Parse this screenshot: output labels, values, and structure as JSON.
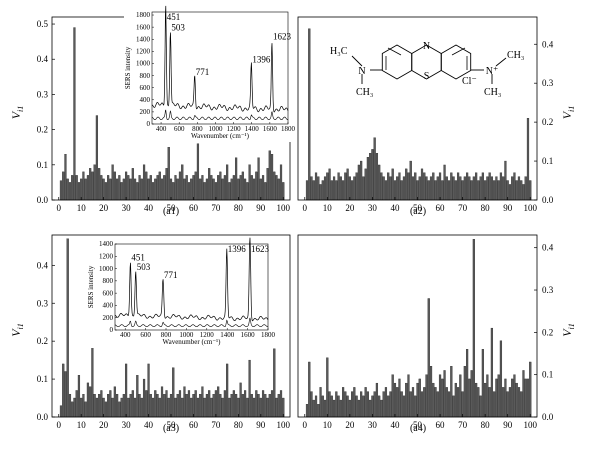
{
  "chart_data": [
    {
      "panel": "a1",
      "type": "bar",
      "label": "(a1)",
      "ylabel_main": "V",
      "ylabel_sub": "i1",
      "ylim": [
        0,
        0.52
      ],
      "xlim": [
        -3,
        103
      ],
      "xticks": [
        "0",
        "10",
        "20",
        "30",
        "40",
        "50",
        "60",
        "70",
        "80",
        "90",
        "100"
      ],
      "yticks": [
        "0.0",
        "0.1",
        "0.2",
        "0.3",
        "0.4",
        "0.5"
      ],
      "y_axis_side": "left",
      "values": [
        0.055,
        0.08,
        0.13,
        0.06,
        0.05,
        0.07,
        0.49,
        0.07,
        0.05,
        0.06,
        0.08,
        0.06,
        0.07,
        0.09,
        0.08,
        0.1,
        0.24,
        0.09,
        0.07,
        0.06,
        0.05,
        0.07,
        0.06,
        0.1,
        0.08,
        0.06,
        0.07,
        0.05,
        0.06,
        0.08,
        0.07,
        0.06,
        0.09,
        0.06,
        0.05,
        0.07,
        0.06,
        0.1,
        0.08,
        0.06,
        0.07,
        0.05,
        0.06,
        0.07,
        0.08,
        0.06,
        0.07,
        0.09,
        0.15,
        0.06,
        0.05,
        0.07,
        0.06,
        0.08,
        0.1,
        0.06,
        0.07,
        0.05,
        0.06,
        0.07,
        0.08,
        0.16,
        0.06,
        0.07,
        0.05,
        0.06,
        0.09,
        0.07,
        0.06,
        0.05,
        0.07,
        0.08,
        0.06,
        0.07,
        0.1,
        0.05,
        0.06,
        0.07,
        0.12,
        0.06,
        0.07,
        0.08,
        0.06,
        0.05,
        0.1,
        0.07,
        0.06,
        0.08,
        0.12,
        0.06,
        0.07,
        0.05,
        0.09,
        0.14,
        0.13,
        0.08,
        0.07,
        0.06,
        0.1,
        0.05
      ],
      "inset": {
        "xlabel": "Wavenumber (cm⁻¹)",
        "ylabel": "SERS intensity",
        "xticks": [
          "400",
          "600",
          "800",
          "1000",
          "1200",
          "1400",
          "1600",
          "1800"
        ],
        "yticks": [
          "0",
          "200",
          "400",
          "600",
          "800",
          "1000",
          "1200",
          "1400",
          "1600",
          "1800"
        ],
        "xlim": [
          300,
          1800
        ],
        "ylim": [
          0,
          1850
        ],
        "peaks": [
          "451",
          "503",
          "771",
          "1396",
          "1623"
        ],
        "peak_positions": [
          451,
          503,
          771,
          1396,
          1623
        ],
        "peak_heights": [
          1700,
          1250,
          520,
          720,
          1100
        ]
      }
    },
    {
      "panel": "a2",
      "type": "bar",
      "label": "(a2)",
      "ylabel_main": "V",
      "ylabel_sub": "i1",
      "ylim": [
        0,
        0.47
      ],
      "xlim": [
        -3,
        103
      ],
      "xticks": [
        "0",
        "10",
        "20",
        "30",
        "40",
        "50",
        "60",
        "70",
        "80",
        "90",
        "100"
      ],
      "yticks": [
        "0.0",
        "0.1",
        "0.2",
        "0.3",
        "0.4"
      ],
      "y_axis_side": "right",
      "values": [
        0.05,
        0.44,
        0.06,
        0.05,
        0.07,
        0.06,
        0.04,
        0.05,
        0.06,
        0.07,
        0.08,
        0.05,
        0.06,
        0.05,
        0.07,
        0.06,
        0.05,
        0.07,
        0.08,
        0.06,
        0.05,
        0.06,
        0.07,
        0.09,
        0.1,
        0.06,
        0.08,
        0.11,
        0.12,
        0.13,
        0.16,
        0.12,
        0.09,
        0.07,
        0.06,
        0.05,
        0.07,
        0.06,
        0.08,
        0.05,
        0.06,
        0.07,
        0.05,
        0.06,
        0.08,
        0.07,
        0.1,
        0.06,
        0.07,
        0.05,
        0.06,
        0.08,
        0.07,
        0.06,
        0.05,
        0.06,
        0.07,
        0.05,
        0.06,
        0.07,
        0.05,
        0.09,
        0.06,
        0.05,
        0.07,
        0.06,
        0.05,
        0.07,
        0.06,
        0.05,
        0.06,
        0.07,
        0.06,
        0.05,
        0.06,
        0.07,
        0.05,
        0.06,
        0.07,
        0.05,
        0.06,
        0.07,
        0.06,
        0.05,
        0.06,
        0.05,
        0.07,
        0.06,
        0.1,
        0.05,
        0.04,
        0.06,
        0.07,
        0.05,
        0.06,
        0.05,
        0.04,
        0.06,
        0.21,
        0.05
      ],
      "structure": {
        "left_group": [
          "H₃C",
          "N",
          "CH₃"
        ],
        "ring_atoms": [
          "N",
          "S"
        ],
        "right_group": [
          "N⁺",
          "CH₃",
          "CH₃"
        ],
        "counter_ion": "Cl⁻"
      }
    },
    {
      "panel": "a3",
      "type": "bar",
      "label": "(a3)",
      "ylabel_main": "V",
      "ylabel_sub": "i1",
      "ylim": [
        0,
        0.48
      ],
      "xlim": [
        -3,
        103
      ],
      "xticks": [
        "0",
        "10",
        "20",
        "30",
        "40",
        "50",
        "60",
        "70",
        "80",
        "90",
        "100"
      ],
      "yticks": [
        "0.0",
        "0.1",
        "0.2",
        "0.3",
        "0.4"
      ],
      "y_axis_side": "left",
      "values": [
        0.03,
        0.14,
        0.12,
        0.47,
        0.06,
        0.04,
        0.05,
        0.07,
        0.11,
        0.05,
        0.06,
        0.04,
        0.09,
        0.08,
        0.3,
        0.06,
        0.05,
        0.06,
        0.07,
        0.05,
        0.04,
        0.06,
        0.07,
        0.05,
        0.08,
        0.06,
        0.04,
        0.05,
        0.06,
        0.14,
        0.05,
        0.06,
        0.07,
        0.05,
        0.11,
        0.06,
        0.05,
        0.1,
        0.07,
        0.14,
        0.06,
        0.05,
        0.07,
        0.06,
        0.05,
        0.08,
        0.06,
        0.07,
        0.05,
        0.06,
        0.13,
        0.05,
        0.06,
        0.07,
        0.05,
        0.08,
        0.06,
        0.07,
        0.05,
        0.06,
        0.07,
        0.05,
        0.06,
        0.08,
        0.05,
        0.06,
        0.07,
        0.05,
        0.06,
        0.07,
        0.08,
        0.06,
        0.05,
        0.07,
        0.14,
        0.05,
        0.06,
        0.07,
        0.06,
        0.05,
        0.09,
        0.06,
        0.07,
        0.05,
        0.15,
        0.06,
        0.05,
        0.07,
        0.06,
        0.05,
        0.07,
        0.06,
        0.05,
        0.06,
        0.07,
        0.18,
        0.05,
        0.06,
        0.07,
        0.05
      ],
      "inset": {
        "xlabel": "Wavenumber (cm⁻¹)",
        "ylabel": "SERS intensity",
        "xticks": [
          "400",
          "600",
          "800",
          "1000",
          "1200",
          "1400",
          "1600",
          "1800"
        ],
        "yticks": [
          "0",
          "200",
          "400",
          "600",
          "800",
          "1000",
          "1200",
          "1400"
        ],
        "xlim": [
          300,
          1800
        ],
        "ylim": [
          0,
          1400
        ],
        "peaks": [
          "451",
          "503",
          "771",
          "1396",
          "1623"
        ],
        "peak_positions": [
          451,
          503,
          771,
          1396,
          1623
        ],
        "peak_heights": [
          900,
          750,
          620,
          1100,
          1330
        ]
      }
    },
    {
      "panel": "a4",
      "type": "bar",
      "label": "(a4)",
      "ylabel_main": "V",
      "ylabel_sub": "i1",
      "ylim": [
        0,
        0.43
      ],
      "xlim": [
        -3,
        103
      ],
      "xticks": [
        "0",
        "10",
        "20",
        "30",
        "40",
        "50",
        "60",
        "70",
        "80",
        "90",
        "100"
      ],
      "yticks": [
        "0.0",
        "0.1",
        "0.2",
        "0.3",
        "0.4"
      ],
      "y_axis_side": "right",
      "values": [
        0.03,
        0.13,
        0.06,
        0.04,
        0.05,
        0.03,
        0.07,
        0.05,
        0.04,
        0.14,
        0.06,
        0.05,
        0.04,
        0.06,
        0.05,
        0.04,
        0.07,
        0.06,
        0.05,
        0.04,
        0.06,
        0.07,
        0.05,
        0.04,
        0.06,
        0.05,
        0.07,
        0.06,
        0.04,
        0.05,
        0.06,
        0.08,
        0.05,
        0.04,
        0.06,
        0.07,
        0.05,
        0.06,
        0.1,
        0.08,
        0.07,
        0.09,
        0.06,
        0.05,
        0.08,
        0.1,
        0.06,
        0.07,
        0.05,
        0.08,
        0.09,
        0.06,
        0.07,
        0.1,
        0.28,
        0.12,
        0.08,
        0.07,
        0.06,
        0.1,
        0.09,
        0.11,
        0.07,
        0.06,
        0.12,
        0.05,
        0.08,
        0.07,
        0.1,
        0.06,
        0.12,
        0.16,
        0.09,
        0.11,
        0.42,
        0.08,
        0.07,
        0.05,
        0.16,
        0.08,
        0.1,
        0.07,
        0.21,
        0.06,
        0.09,
        0.1,
        0.18,
        0.07,
        0.09,
        0.06,
        0.07,
        0.09,
        0.1,
        0.08,
        0.07,
        0.06,
        0.11,
        0.09,
        0.09,
        0.13
      ]
    }
  ]
}
